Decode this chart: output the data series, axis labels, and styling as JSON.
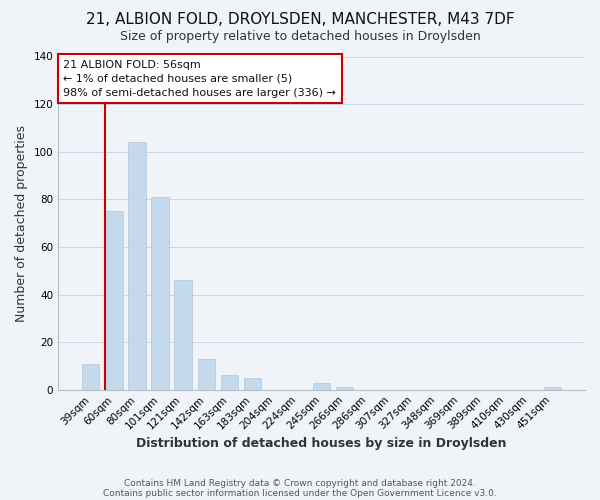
{
  "title": "21, ALBION FOLD, DROYLSDEN, MANCHESTER, M43 7DF",
  "subtitle": "Size of property relative to detached houses in Droylsden",
  "xlabel": "Distribution of detached houses by size in Droylsden",
  "ylabel": "Number of detached properties",
  "bar_labels": [
    "39sqm",
    "60sqm",
    "80sqm",
    "101sqm",
    "121sqm",
    "142sqm",
    "163sqm",
    "183sqm",
    "204sqm",
    "224sqm",
    "245sqm",
    "266sqm",
    "286sqm",
    "307sqm",
    "327sqm",
    "348sqm",
    "369sqm",
    "389sqm",
    "410sqm",
    "430sqm",
    "451sqm"
  ],
  "bar_values": [
    11,
    75,
    104,
    81,
    46,
    13,
    6,
    5,
    0,
    0,
    3,
    1,
    0,
    0,
    0,
    0,
    0,
    0,
    0,
    0,
    1
  ],
  "bar_color": "#c5d9ed",
  "highlight_color": "#cc0000",
  "annotation_title": "21 ALBION FOLD: 56sqm",
  "annotation_line1": "← 1% of detached houses are smaller (5)",
  "annotation_line2": "98% of semi-detached houses are larger (336) →",
  "annotation_box_facecolor": "#ffffff",
  "annotation_box_edgecolor": "#cc0000",
  "ylim": [
    0,
    140
  ],
  "yticks": [
    0,
    20,
    40,
    60,
    80,
    100,
    120,
    140
  ],
  "footer1": "Contains HM Land Registry data © Crown copyright and database right 2024.",
  "footer2": "Contains public sector information licensed under the Open Government Licence v3.0.",
  "background_color": "#f0f4f8",
  "plot_bg_color": "#f0f4f8",
  "grid_color": "#c8d8e8",
  "title_fontsize": 11,
  "subtitle_fontsize": 9,
  "axis_label_fontsize": 9,
  "tick_fontsize": 7.5,
  "footer_fontsize": 6.5,
  "annotation_fontsize": 8
}
